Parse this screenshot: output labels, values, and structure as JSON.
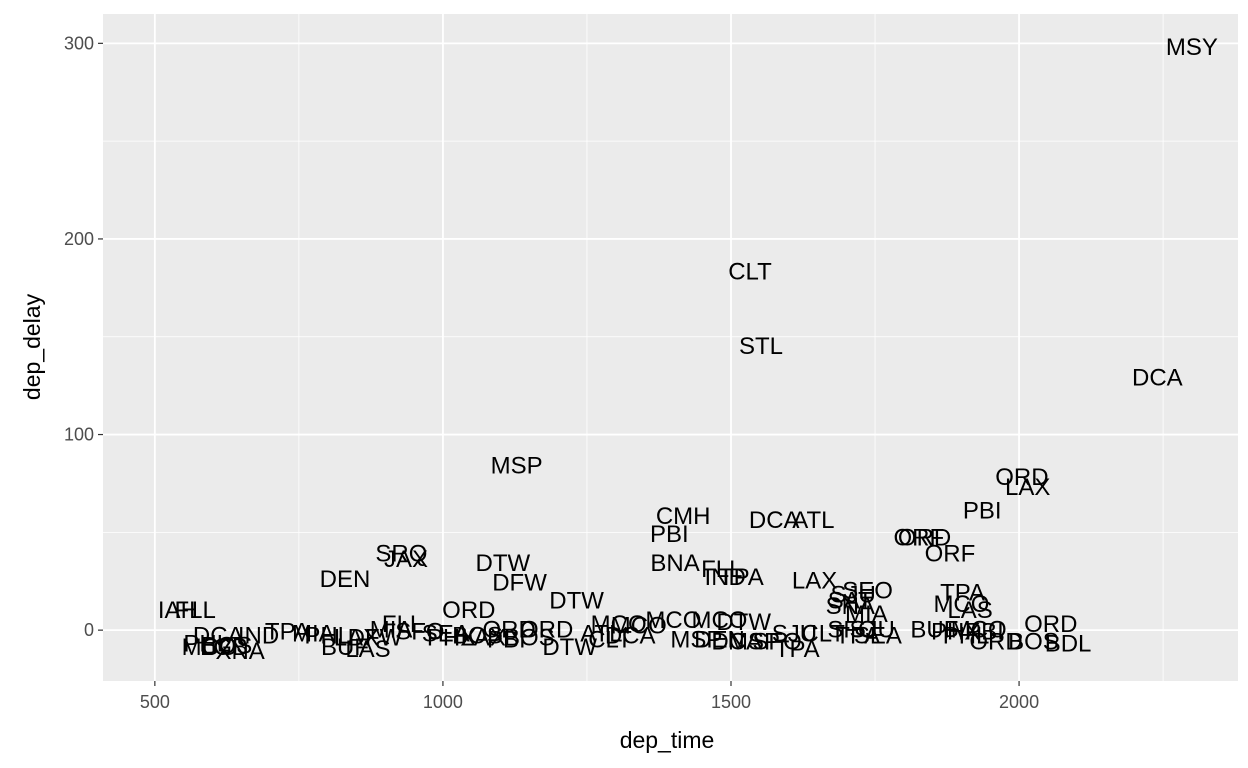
{
  "chart_data": {
    "type": "scatter",
    "xlabel": "dep_time",
    "ylabel": "dep_delay",
    "xlim": [
      410,
      2380
    ],
    "ylim": [
      -26,
      315
    ],
    "x_ticks": [
      500,
      1000,
      1500,
      2000
    ],
    "y_ticks": [
      0,
      100,
      200,
      300
    ],
    "x_tick_labels": [
      "500",
      "1000",
      "1500",
      "2000"
    ],
    "y_tick_labels": [
      "0",
      "100",
      "200",
      "300"
    ],
    "grid": true,
    "panel_background": "#ebebeb",
    "grid_color": "#ffffff",
    "text_color": "#000000",
    "points": [
      {
        "x": 2300,
        "y": 298,
        "label": "MSY"
      },
      {
        "x": 1533,
        "y": 183,
        "label": "CLT"
      },
      {
        "x": 1552,
        "y": 145,
        "label": "STL"
      },
      {
        "x": 2240,
        "y": 129,
        "label": "DCA"
      },
      {
        "x": 1128,
        "y": 84,
        "label": "MSP"
      },
      {
        "x": 2005,
        "y": 78,
        "label": "ORD"
      },
      {
        "x": 2015,
        "y": 73,
        "label": "LAX"
      },
      {
        "x": 1936,
        "y": 61,
        "label": "PBI"
      },
      {
        "x": 1417,
        "y": 58,
        "label": "CMH"
      },
      {
        "x": 1575,
        "y": 56,
        "label": "DCA"
      },
      {
        "x": 1643,
        "y": 56,
        "label": "ATL"
      },
      {
        "x": 1393,
        "y": 49,
        "label": "PBI"
      },
      {
        "x": 1826,
        "y": 47,
        "label": "ORF"
      },
      {
        "x": 1836,
        "y": 47,
        "label": "ORD"
      },
      {
        "x": 1880,
        "y": 39,
        "label": "ORF"
      },
      {
        "x": 928,
        "y": 39,
        "label": "SRQ"
      },
      {
        "x": 936,
        "y": 36,
        "label": "JAX"
      },
      {
        "x": 1104,
        "y": 34,
        "label": "DTW"
      },
      {
        "x": 1403,
        "y": 34,
        "label": "BNA"
      },
      {
        "x": 1484,
        "y": 31,
        "label": "FLL"
      },
      {
        "x": 1490,
        "y": 27,
        "label": "IND"
      },
      {
        "x": 1518,
        "y": 27,
        "label": "TPA"
      },
      {
        "x": 830,
        "y": 26,
        "label": "DEN"
      },
      {
        "x": 1133,
        "y": 24,
        "label": "DFW"
      },
      {
        "x": 1645,
        "y": 25,
        "label": "LAX"
      },
      {
        "x": 1737,
        "y": 20,
        "label": "SEO"
      },
      {
        "x": 1712,
        "y": 18,
        "label": "SJU"
      },
      {
        "x": 1902,
        "y": 19,
        "label": "TPA"
      },
      {
        "x": 1707,
        "y": 15,
        "label": "SAT"
      },
      {
        "x": 1232,
        "y": 15,
        "label": "DTW"
      },
      {
        "x": 1900,
        "y": 13,
        "label": "MCO"
      },
      {
        "x": 1915,
        "y": 10,
        "label": "LAS"
      },
      {
        "x": 1707,
        "y": 12,
        "label": "SNA"
      },
      {
        "x": 540,
        "y": 10,
        "label": "IAH"
      },
      {
        "x": 570,
        "y": 10,
        "label": "FLL"
      },
      {
        "x": 1045,
        "y": 10,
        "label": "ORD"
      },
      {
        "x": 1735,
        "y": 8,
        "label": "MIA"
      },
      {
        "x": 1400,
        "y": 5,
        "label": "MCO"
      },
      {
        "x": 1480,
        "y": 5,
        "label": "MCO"
      },
      {
        "x": 1522,
        "y": 4,
        "label": "DTW"
      },
      {
        "x": 2055,
        "y": 3,
        "label": "ORD"
      },
      {
        "x": 930,
        "y": 3,
        "label": "FLL"
      },
      {
        "x": 1305,
        "y": 3,
        "label": "MCO"
      },
      {
        "x": 1340,
        "y": 2,
        "label": "MCO"
      },
      {
        "x": 1115,
        "y": 0,
        "label": "ORD"
      },
      {
        "x": 1180,
        "y": 0,
        "label": "ORD"
      },
      {
        "x": 1710,
        "y": 0,
        "label": "SFO"
      },
      {
        "x": 1745,
        "y": 0,
        "label": "SJU"
      },
      {
        "x": 1853,
        "y": 0,
        "label": "BUF"
      },
      {
        "x": 1930,
        "y": 0,
        "label": "MCO"
      },
      {
        "x": 1940,
        "y": -1,
        "label": "PBI"
      },
      {
        "x": 1890,
        "y": -1,
        "label": "PHX"
      },
      {
        "x": 1908,
        "y": -3,
        "label": "PHL"
      },
      {
        "x": 610,
        "y": -3,
        "label": "DCA"
      },
      {
        "x": 680,
        "y": -3,
        "label": "IND"
      },
      {
        "x": 730,
        "y": -1,
        "label": "TPA"
      },
      {
        "x": 775,
        "y": -2,
        "label": "MIA"
      },
      {
        "x": 800,
        "y": -3,
        "label": "PHL"
      },
      {
        "x": 850,
        "y": -4,
        "label": "LAX"
      },
      {
        "x": 910,
        "y": 0,
        "label": "MIA"
      },
      {
        "x": 960,
        "y": -1,
        "label": "SFO"
      },
      {
        "x": 1005,
        "y": -2,
        "label": "SEA"
      },
      {
        "x": 1060,
        "y": -3,
        "label": "BOS"
      },
      {
        "x": 1275,
        "y": -2,
        "label": "ATL"
      },
      {
        "x": 1325,
        "y": -3,
        "label": "DCA"
      },
      {
        "x": 1610,
        "y": -2,
        "label": "SJU"
      },
      {
        "x": 1660,
        "y": -2,
        "label": "CLT"
      },
      {
        "x": 1720,
        "y": -3,
        "label": "TPA"
      },
      {
        "x": 1755,
        "y": -3,
        "label": "SEA"
      },
      {
        "x": 590,
        "y": -7,
        "label": "PHL"
      },
      {
        "x": 625,
        "y": -8,
        "label": "BOS"
      },
      {
        "x": 620,
        "y": -9,
        "label": "LGB"
      },
      {
        "x": 595,
        "y": -9,
        "label": "MCO"
      },
      {
        "x": 648,
        "y": -11,
        "label": "XNA"
      },
      {
        "x": 830,
        "y": -9,
        "label": "BUF"
      },
      {
        "x": 870,
        "y": -10,
        "label": "LAS"
      },
      {
        "x": 882,
        "y": -4,
        "label": "DFW"
      },
      {
        "x": 1015,
        "y": -4,
        "label": "PHX"
      },
      {
        "x": 1070,
        "y": -4,
        "label": "LAX"
      },
      {
        "x": 1110,
        "y": -5,
        "label": "PBI"
      },
      {
        "x": 1150,
        "y": -4,
        "label": "BOS"
      },
      {
        "x": 1220,
        "y": -9,
        "label": "DTW"
      },
      {
        "x": 1290,
        "y": -5,
        "label": "CLT"
      },
      {
        "x": 1440,
        "y": -5,
        "label": "MSP"
      },
      {
        "x": 1480,
        "y": -5,
        "label": "DEN"
      },
      {
        "x": 1510,
        "y": -6,
        "label": "DCA"
      },
      {
        "x": 1540,
        "y": -6,
        "label": "MSP"
      },
      {
        "x": 1580,
        "y": -6,
        "label": "SFO"
      },
      {
        "x": 1615,
        "y": -10,
        "label": "TPA"
      },
      {
        "x": 1960,
        "y": -6,
        "label": "ORD"
      },
      {
        "x": 2025,
        "y": -6,
        "label": "BOS"
      },
      {
        "x": 2085,
        "y": -7,
        "label": "BDL"
      }
    ]
  }
}
